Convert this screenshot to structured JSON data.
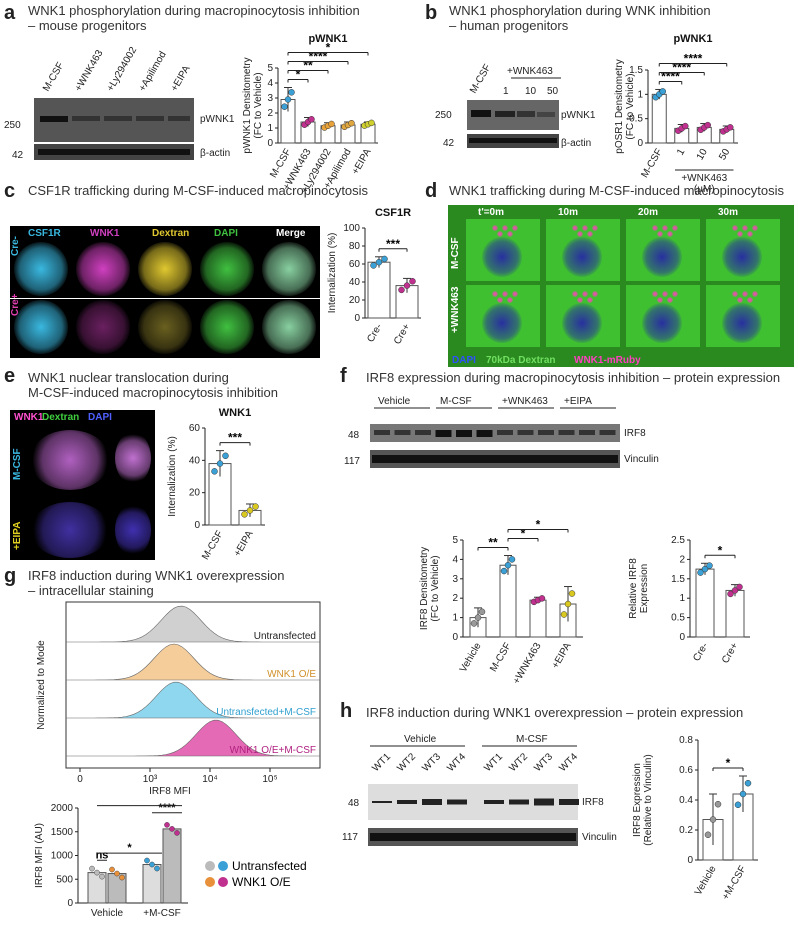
{
  "panels": {
    "a": {
      "letter": "a",
      "title": "WNK1 phosphorylation during macropinocytosis inhibition\n– mouse progenitors",
      "lanes": [
        "M-CSF",
        "+WNK463",
        "+Ly294002",
        "+Apilimod",
        "+EIPA"
      ],
      "bands": [
        {
          "mw": "250",
          "label": "pWNK1"
        },
        {
          "mw": "42",
          "label": "β-actin"
        }
      ]
    },
    "b": {
      "letter": "b",
      "title": "WNK1 phosphorylation during WNK inhibition\n– human progenitors",
      "lanes": [
        "M-CSF",
        "1",
        "10",
        "50"
      ],
      "lane_group": "+WNK463",
      "bands": [
        {
          "mw": "250",
          "label": "pWNK1"
        },
        {
          "mw": "42",
          "label": "β-actin"
        }
      ]
    },
    "c": {
      "letter": "c",
      "title": "CSF1R trafficking during M-CSF-induced macropinocytosis",
      "channels": [
        "CSF1R",
        "WNK1",
        "Dextran",
        "DAPI",
        "Merge"
      ],
      "rows": [
        "Cre-",
        "Cre+"
      ]
    },
    "d": {
      "letter": "d",
      "title": "WNK1 trafficking during M-CSF-induced macropinocytosis",
      "times": [
        "t'=0m",
        "10m",
        "20m",
        "30m"
      ],
      "rows": [
        "M-CSF",
        "+WNK463"
      ],
      "legend": [
        "DAPI",
        "70kDa Dextran",
        "WNK1-mRuby"
      ]
    },
    "e": {
      "letter": "e",
      "title": "WNK1 nuclear translocation during\nM-CSF-induced macropinocytosis inhibition",
      "channels": [
        "WNK1",
        "Dextran",
        "DAPI"
      ],
      "rows": [
        "M-CSF",
        "+EIPA"
      ]
    },
    "f": {
      "letter": "f",
      "title": "IRF8 expression during macropinocytosis inhibition – protein expression",
      "groups": [
        "Vehicle",
        "M-CSF",
        "+WNK463",
        "+EIPA"
      ],
      "bands": [
        {
          "mw": "48",
          "label": "IRF8"
        },
        {
          "mw": "117",
          "label": "Vinculin"
        }
      ]
    },
    "g": {
      "letter": "g",
      "title": "IRF8 induction during WNK1 overexpression\n– intracellular staining",
      "hist_labels": [
        "Untransfected",
        "WNK1 O/E",
        "Untransfected+M-CSF",
        "WNK1 O/E+M-CSF"
      ],
      "hist_xlabel": "IRF8 MFI",
      "hist_ylabel": "Normalized to Mode",
      "hist_ticks": [
        "0",
        "10³",
        "10⁴",
        "10⁵"
      ]
    },
    "h": {
      "letter": "h",
      "title": "IRF8 induction during WNK1 overexpression – protein expression",
      "groups": [
        "Vehicle",
        "M-CSF"
      ],
      "lanes": [
        "WT1",
        "WT2",
        "WT3",
        "WT4",
        "WT1",
        "WT2",
        "WT3",
        "WT4"
      ],
      "bands": [
        {
          "mw": "48",
          "label": "IRF8"
        },
        {
          "mw": "117",
          "label": "Vinculin"
        }
      ]
    }
  },
  "chart_data": [
    {
      "id": "a",
      "type": "bar",
      "title": "pWNK1",
      "ylabel": "pWNK1 Densitometry\n(FC to Vehicle)",
      "ylim": [
        0,
        5
      ],
      "yticks": [
        0,
        1,
        2,
        3,
        4,
        5
      ],
      "categories": [
        "M-CSF",
        "+WNK463",
        "+Ly294002",
        "+Apilimod",
        "+EIPA"
      ],
      "values": [
        2.9,
        1.4,
        1.15,
        1.2,
        1.25
      ],
      "errors": [
        0.8,
        0.3,
        0.2,
        0.2,
        0.15
      ],
      "colors": [
        "#3aa0d5",
        "#c0308f",
        "#e8a33a",
        "#e0a640",
        "#cfd02e"
      ],
      "sig": [
        "*",
        "**",
        "****",
        "*"
      ]
    },
    {
      "id": "b",
      "type": "bar",
      "title": "pWNK1",
      "ylabel": "pOSR1 Densitometry\n(FC to Vehicle)",
      "ylim": [
        0,
        1.5
      ],
      "yticks": [
        0,
        0.5,
        1.0,
        1.5
      ],
      "categories": [
        "M-CSF",
        "1",
        "10",
        "50"
      ],
      "xgroup": "+WNK463\n(µM)",
      "values": [
        1.0,
        0.3,
        0.32,
        0.28
      ],
      "errors": [
        0.1,
        0.08,
        0.08,
        0.07
      ],
      "colors": [
        "#3aa0d5",
        "#c0308f",
        "#c0308f",
        "#c0308f"
      ],
      "sig": [
        "****",
        "****",
        "****"
      ]
    },
    {
      "id": "c",
      "type": "bar",
      "title": "CSF1R",
      "ylabel": "Internalization (%)",
      "ylim": [
        0,
        100
      ],
      "yticks": [
        0,
        20,
        40,
        60,
        80,
        100
      ],
      "categories": [
        "Cre-",
        "Cre+"
      ],
      "values": [
        62,
        36
      ],
      "errors": [
        6,
        8
      ],
      "colors": [
        "#3aa0d5",
        "#c0308f"
      ],
      "sig": [
        "***"
      ]
    },
    {
      "id": "e",
      "type": "bar",
      "title": "WNK1",
      "ylabel": "Internalization (%)",
      "ylim": [
        0,
        60
      ],
      "yticks": [
        0,
        20,
        40,
        60
      ],
      "categories": [
        "M-CSF",
        "+EIPA"
      ],
      "values": [
        38,
        9
      ],
      "errors": [
        8,
        4
      ],
      "colors": [
        "#3aa0d5",
        "#d8c820"
      ],
      "sig": [
        "***"
      ]
    },
    {
      "id": "f1",
      "type": "bar",
      "ylabel": "IRF8 Densitometry\n(FC to Vehicle)",
      "ylim": [
        0,
        5
      ],
      "yticks": [
        0,
        1,
        2,
        3,
        4,
        5
      ],
      "categories": [
        "Vehicle",
        "M-CSF",
        "+WNK463",
        "+EIPA"
      ],
      "values": [
        1.0,
        3.7,
        1.9,
        1.7
      ],
      "errors": [
        0.5,
        0.5,
        0.15,
        0.9
      ],
      "colors": [
        "#999999",
        "#3aa0d5",
        "#c0308f",
        "#d8c820"
      ],
      "sig": [
        "**",
        "*",
        "*"
      ]
    },
    {
      "id": "f2",
      "type": "bar",
      "ylabel": "Relative IRF8\nExpression",
      "ylim": [
        0,
        2.5
      ],
      "yticks": [
        0,
        0.5,
        1.0,
        1.5,
        2.0,
        2.5
      ],
      "categories": [
        "Cre-",
        "Cre+"
      ],
      "values": [
        1.75,
        1.2
      ],
      "errors": [
        0.15,
        0.15
      ],
      "colors": [
        "#3aa0d5",
        "#c0308f"
      ],
      "sig": [
        "*"
      ]
    },
    {
      "id": "g2",
      "type": "bar",
      "ylabel": "IRF8 MFI (AU)",
      "ylim": [
        0,
        2000
      ],
      "yticks": [
        0,
        500,
        1000,
        1500,
        2000
      ],
      "categories": [
        "Vehicle",
        "+M-CSF"
      ],
      "series": [
        {
          "name": "Untransfected",
          "values": [
            640,
            810
          ]
        },
        {
          "name": "WNK1 O/E",
          "values": [
            620,
            1560
          ]
        }
      ],
      "colors": [
        "#dddddd",
        "#bbbbbb"
      ],
      "sig": [
        "ns",
        "*",
        "****",
        "****"
      ],
      "legend": [
        "Untransfected",
        "WNK1 O/E"
      ]
    },
    {
      "id": "h",
      "type": "bar",
      "ylabel": "IRF8 Expression\n(Relative to Vinculin)",
      "ylim": [
        0,
        0.8
      ],
      "yticks": [
        0,
        0.2,
        0.4,
        0.6,
        0.8
      ],
      "categories": [
        "Vehicle",
        "+M-CSF"
      ],
      "values": [
        0.27,
        0.44
      ],
      "errors": [
        0.17,
        0.12
      ],
      "colors": [
        "#999999",
        "#3aa0d5"
      ],
      "sig": [
        "*"
      ]
    }
  ]
}
